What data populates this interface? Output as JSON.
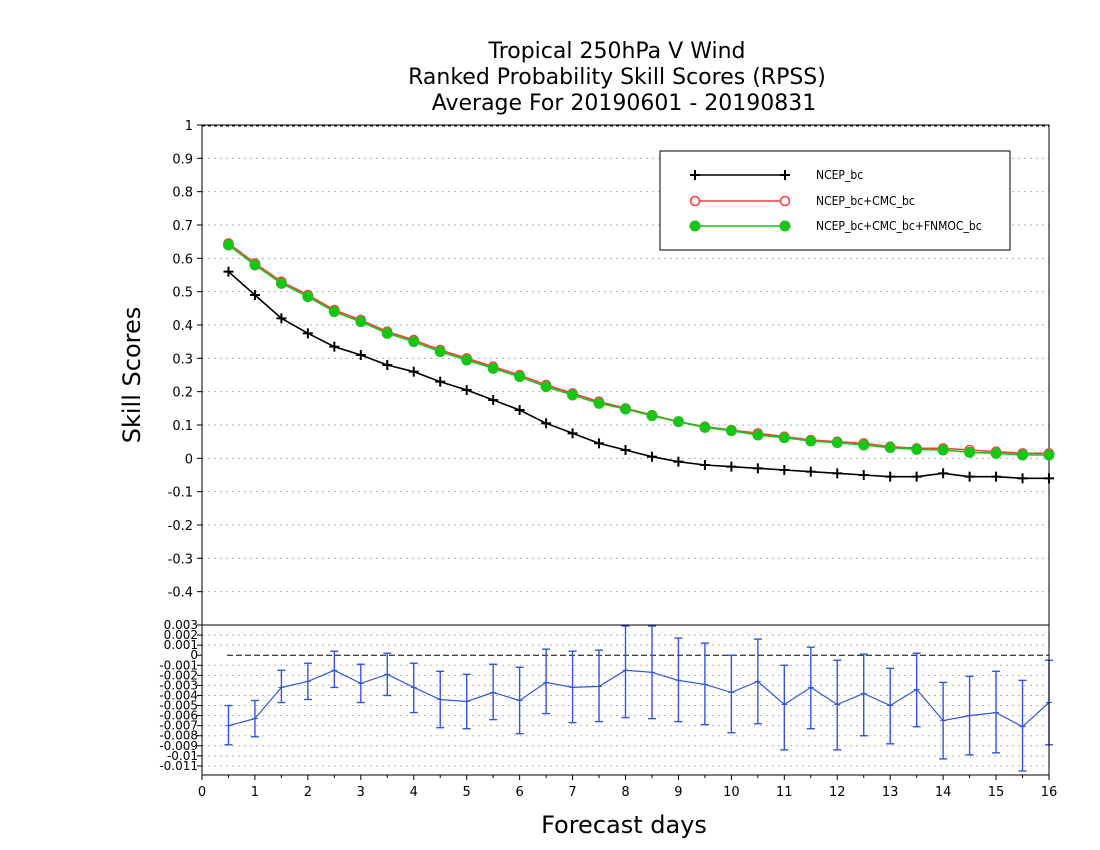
{
  "chart_data": [
    {
      "type": "line",
      "title": [
        "Tropical 250hPa V Wind",
        "Ranked Probability Skill Scores (RPSS)",
        "Average For 20190601 - 20190831"
      ],
      "ylabel": "Skill Scores",
      "xlim": [
        0,
        16
      ],
      "ylim": [
        -0.5,
        1
      ],
      "yticks": [
        "1",
        "0.9",
        "0.8",
        "0.7",
        "0.6",
        "0.5",
        "0.4",
        "0.3",
        "0.2",
        "0.1",
        "0",
        "-0.1",
        "-0.2",
        "-0.3",
        "-0.4"
      ],
      "grid": true,
      "legend_position": "top-right",
      "x": [
        0.5,
        1,
        1.5,
        2,
        2.5,
        3,
        3.5,
        4,
        4.5,
        5,
        5.5,
        6,
        6.5,
        7,
        7.5,
        8,
        8.5,
        9,
        9.5,
        10,
        10.5,
        11,
        11.5,
        12,
        12.5,
        13,
        13.5,
        14,
        14.5,
        15,
        15.5,
        16
      ],
      "series": [
        {
          "name": "NCEP_bc",
          "color": "#000000",
          "marker": "plus",
          "values": [
            0.56,
            0.49,
            0.42,
            0.375,
            0.335,
            0.31,
            0.28,
            0.26,
            0.23,
            0.205,
            0.175,
            0.145,
            0.105,
            0.075,
            0.045,
            0.025,
            0.005,
            -0.01,
            -0.02,
            -0.025,
            -0.03,
            -0.035,
            -0.04,
            -0.045,
            -0.05,
            -0.055,
            -0.055,
            -0.045,
            -0.055,
            -0.055,
            -0.06,
            -0.06
          ]
        },
        {
          "name": "NCEP_bc+CMC_bc",
          "color": "#ff3b3b",
          "marker": "open-circle",
          "values": [
            0.645,
            0.585,
            0.53,
            0.49,
            0.445,
            0.415,
            0.38,
            0.355,
            0.325,
            0.3,
            0.275,
            0.25,
            0.22,
            0.195,
            0.17,
            0.15,
            0.13,
            0.11,
            0.095,
            0.085,
            0.075,
            0.065,
            0.055,
            0.05,
            0.045,
            0.035,
            0.03,
            0.03,
            0.025,
            0.02,
            0.015,
            0.015
          ]
        },
        {
          "name": "NCEP_bc+CMC_bc+FNMOC_bc",
          "color": "#18c418",
          "marker": "filled-circle",
          "values": [
            0.64,
            0.58,
            0.525,
            0.485,
            0.44,
            0.41,
            0.375,
            0.35,
            0.32,
            0.295,
            0.27,
            0.245,
            0.215,
            0.19,
            0.165,
            0.148,
            0.128,
            0.11,
            0.093,
            0.083,
            0.07,
            0.062,
            0.052,
            0.047,
            0.04,
            0.032,
            0.027,
            0.025,
            0.018,
            0.015,
            0.01,
            0.01
          ]
        }
      ]
    },
    {
      "type": "line",
      "xlabel": "Forecast days",
      "xlim": [
        0,
        16
      ],
      "ylim": [
        -0.012,
        0.003
      ],
      "yticks": [
        "0.003",
        "0.002",
        "0.001",
        "0",
        "-0.001",
        "-0.002",
        "-0.003",
        "-0.004",
        "-0.005",
        "-0.006",
        "-0.007",
        "-0.008",
        "-0.009",
        "-0.01",
        "-0.011"
      ],
      "xticks": [
        "0",
        "1",
        "2",
        "3",
        "4",
        "5",
        "6",
        "7",
        "8",
        "9",
        "10",
        "11",
        "12",
        "13",
        "14",
        "15",
        "16"
      ],
      "grid": true,
      "x": [
        0.5,
        1,
        1.5,
        2,
        2.5,
        3,
        3.5,
        4,
        4.5,
        5,
        5.5,
        6,
        6.5,
        7,
        7.5,
        8,
        8.5,
        9,
        9.5,
        10,
        10.5,
        11,
        11.5,
        12,
        12.5,
        13,
        13.5,
        14,
        14.5,
        15,
        15.5,
        16
      ],
      "series": [
        {
          "color": "#3355dd",
          "with_error_bars": true,
          "values": [
            -0.007,
            -0.0063,
            -0.0032,
            -0.0026,
            -0.0015,
            -0.0028,
            -0.0019,
            -0.0032,
            -0.0044,
            -0.0046,
            -0.0037,
            -0.0045,
            -0.0027,
            -0.0032,
            -0.0031,
            -0.0015,
            -0.0017,
            -0.0025,
            -0.0029,
            -0.0037,
            -0.0026,
            -0.0049,
            -0.0032,
            -0.0049,
            -0.0038,
            -0.005,
            -0.0034,
            -0.0065,
            -0.006,
            -0.0057,
            -0.0071,
            -0.0047
          ],
          "lower": [
            -0.0089,
            -0.0081,
            -0.0047,
            -0.0044,
            -0.0032,
            -0.0047,
            -0.004,
            -0.0057,
            -0.0072,
            -0.0073,
            -0.0064,
            -0.0078,
            -0.0058,
            -0.0067,
            -0.0066,
            -0.0062,
            -0.0063,
            -0.0066,
            -0.0069,
            -0.0077,
            -0.0068,
            -0.0094,
            -0.0073,
            -0.0094,
            -0.008,
            -0.0088,
            -0.0071,
            -0.0103,
            -0.0099,
            -0.0097,
            -0.0115,
            -0.0089
          ],
          "upper": [
            -0.005,
            -0.0045,
            -0.0015,
            -0.0008,
            0.0004,
            -0.0009,
            0.0002,
            -0.0008,
            -0.0016,
            -0.0019,
            -0.0009,
            -0.0012,
            0.0006,
            0.0004,
            0.0005,
            0.0029,
            0.0029,
            0.0017,
            0.0012,
            0.0,
            0.0016,
            -0.001,
            0.0008,
            -0.0005,
            0.0001,
            -0.0013,
            0.0002,
            -0.0027,
            -0.0021,
            -0.0016,
            -0.0025,
            -0.0005
          ]
        }
      ]
    }
  ]
}
